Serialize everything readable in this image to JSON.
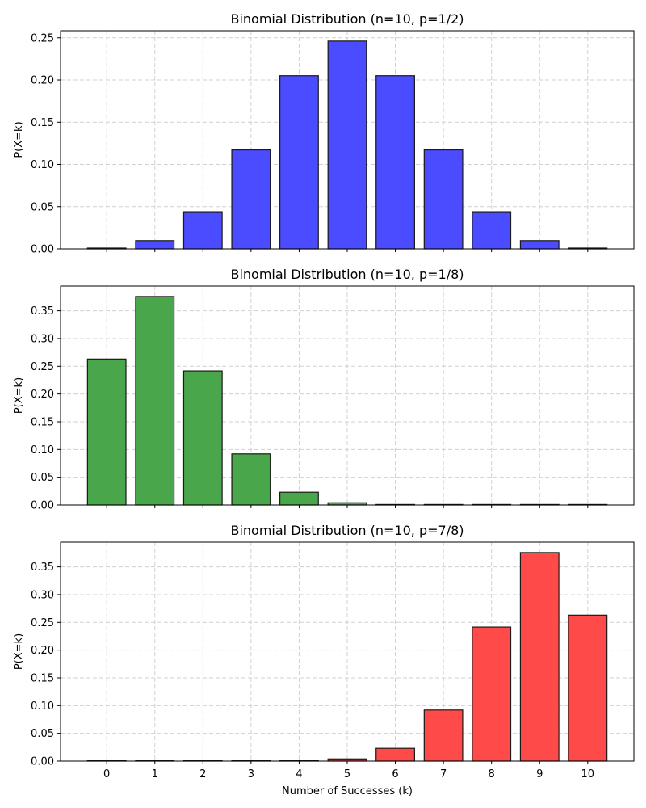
{
  "chart_data": [
    {
      "type": "bar",
      "title": "Binomial Distribution (n=10, p=1/2)",
      "xlabel": "",
      "ylabel": "P(X=k)",
      "categories": [
        "0",
        "1",
        "2",
        "3",
        "4",
        "5",
        "6",
        "7",
        "8",
        "9",
        "10"
      ],
      "values": [
        0.000977,
        0.009766,
        0.043945,
        0.117188,
        0.205078,
        0.246094,
        0.205078,
        0.117188,
        0.043945,
        0.009766,
        0.000977
      ],
      "yticks": [
        "0.00",
        "0.05",
        "0.10",
        "0.15",
        "0.20",
        "0.25"
      ],
      "ylim": [
        0,
        0.2584
      ],
      "color": "#4b4bff",
      "grid": true,
      "show_xticklabels": false
    },
    {
      "type": "bar",
      "title": "Binomial Distribution (n=10, p=1/8)",
      "xlabel": "",
      "ylabel": "P(X=k)",
      "categories": [
        "0",
        "1",
        "2",
        "3",
        "4",
        "5",
        "6",
        "7",
        "8",
        "9",
        "10"
      ],
      "values": [
        0.263076,
        0.375823,
        0.241601,
        0.092038,
        0.023009,
        0.003944,
        0.00047,
        3.8e-05,
        2e-06,
        0.0,
        0.0
      ],
      "yticks": [
        "0.00",
        "0.05",
        "0.10",
        "0.15",
        "0.20",
        "0.25",
        "0.30",
        "0.35"
      ],
      "ylim": [
        0,
        0.3946
      ],
      "color": "#4aa64a",
      "grid": true,
      "show_xticklabels": false
    },
    {
      "type": "bar",
      "title": "Binomial Distribution (n=10, p=7/8)",
      "xlabel": "Number of Successes (k)",
      "ylabel": "P(X=k)",
      "categories": [
        "0",
        "1",
        "2",
        "3",
        "4",
        "5",
        "6",
        "7",
        "8",
        "9",
        "10"
      ],
      "values": [
        0.0,
        0.0,
        2e-06,
        3.8e-05,
        0.00047,
        0.003944,
        0.023009,
        0.092038,
        0.241601,
        0.375823,
        0.263076
      ],
      "yticks": [
        "0.00",
        "0.05",
        "0.10",
        "0.15",
        "0.20",
        "0.25",
        "0.30",
        "0.35"
      ],
      "ylim": [
        0,
        0.3946
      ],
      "color": "#ff4a4a",
      "grid": true,
      "show_xticklabels": true
    }
  ]
}
